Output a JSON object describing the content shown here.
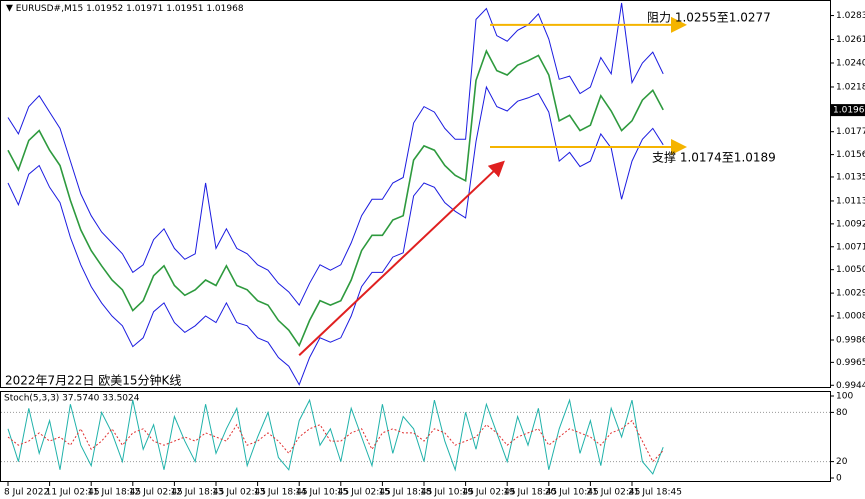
{
  "chart_data": [
    {
      "type": "line",
      "title": "EURUSD#,M15",
      "ohlc": [
        1.01952,
        1.01971,
        1.01951,
        1.01968
      ],
      "categories": [
        "8 Jul 2022",
        null,
        null,
        null,
        "11 Jul 02:45",
        null,
        null,
        null,
        "11 Jul 18:45",
        null,
        null,
        null,
        "12 Jul 02:45",
        null,
        null,
        null,
        "12 Jul 18:45",
        null,
        null,
        null,
        "13 Jul 02:45",
        null,
        null,
        null,
        "13 Jul 18:45",
        null,
        null,
        null,
        "14 Jul 10:45",
        null,
        null,
        null,
        "15 Jul 02:45",
        null,
        null,
        null,
        "15 Jul 18:45",
        null,
        null,
        null,
        "18 Jul 10:45",
        null,
        null,
        null,
        "19 Jul 02:45",
        null,
        null,
        null,
        "19 Jul 18:45",
        null,
        null,
        null,
        "20 Jul 10:45",
        null,
        null,
        null,
        "21 Jul 02:45",
        null,
        null,
        null,
        "21 Jul 18:45",
        null,
        null,
        null
      ],
      "series": [
        {
          "color": "#2e9a3e",
          "values": [
            1.016,
            1.0142,
            1.0169,
            1.0178,
            1.016,
            1.0146,
            1.0114,
            1.0087,
            1.0068,
            1.0054,
            1.0041,
            1.0032,
            1.0013,
            1.0022,
            1.0045,
            1.0054,
            1.0036,
            1.0027,
            1.0032,
            1.0041,
            1.0036,
            1.0054,
            1.0036,
            1.0032,
            1.0022,
            1.0018,
            1.0004,
            0.9995,
            0.9981,
            1.0004,
            1.0022,
            1.0018,
            1.0022,
            1.0041,
            1.0068,
            1.0082,
            1.0082,
            1.0096,
            1.01,
            1.0151,
            1.0164,
            1.016,
            1.0146,
            1.0137,
            1.0132,
            1.0224,
            1.0251,
            1.0233,
            1.0229,
            1.0238,
            1.0242,
            1.0247,
            1.0229,
            1.0187,
            1.0192,
            1.0178,
            1.0183,
            1.021,
            1.0196,
            1.0178,
            1.0187,
            1.0206,
            1.0215,
            1.0197
          ]
        },
        {
          "color": "#1c1ce0",
          "values": [
            1.019,
            1.0175,
            1.02,
            1.021,
            1.0195,
            1.018,
            1.015,
            1.012,
            1.01,
            1.0085,
            1.0075,
            1.0065,
            1.0048,
            1.0055,
            1.0078,
            1.0088,
            1.007,
            1.006,
            1.0065,
            1.013,
            1.007,
            1.0088,
            1.007,
            1.0065,
            1.0055,
            1.005,
            1.0038,
            1.003,
            1.0018,
            1.0038,
            1.0055,
            1.005,
            1.0055,
            1.0075,
            1.01,
            1.0115,
            1.0115,
            1.013,
            1.0135,
            1.0185,
            1.02,
            1.0195,
            1.018,
            1.017,
            1.017,
            1.028,
            1.029,
            1.0265,
            1.026,
            1.027,
            1.0275,
            1.0285,
            1.0262,
            1.0225,
            1.0228,
            1.0212,
            1.0218,
            1.0245,
            1.023,
            1.0295,
            1.0222,
            1.024,
            1.025,
            1.023
          ]
        },
        {
          "color": "#1c1ce0",
          "values": [
            1.013,
            1.011,
            1.0138,
            1.0146,
            1.0126,
            1.0112,
            1.008,
            1.0055,
            1.0035,
            1.002,
            1.0008,
            0.9999,
            0.998,
            0.9988,
            1.0012,
            1.002,
            1.0002,
            0.9993,
            0.9999,
            1.0008,
            1.0002,
            1.002,
            1.0002,
            0.9999,
            0.9988,
            0.9984,
            0.997,
            0.9962,
            0.9945,
            0.997,
            0.9988,
            0.9984,
            0.9988,
            1.0008,
            1.0035,
            1.0048,
            1.0048,
            1.0062,
            1.0066,
            1.0118,
            1.013,
            1.0126,
            1.0112,
            1.0104,
            1.0098,
            1.0168,
            1.0218,
            1.02,
            1.0196,
            1.0205,
            1.0208,
            1.0212,
            1.0195,
            1.015,
            1.0158,
            1.0145,
            1.015,
            1.0175,
            1.0162,
            1.0115,
            1.015,
            1.017,
            1.018,
            1.0165
          ]
        }
      ],
      "ylim": [
        0.9942,
        1.0295
      ],
      "yticks": [
        1.02835,
        1.02615,
        {
          "value": 1.024,
          "label": "1.02400"
        },
        1.0218,
        1.0177,
        1.0156,
        1.01355,
        1.01135,
        1.00925,
        1.00715,
        1.00505,
        {
          "value": 1.0029,
          "label": "1.00290"
        },
        {
          "value": 1.0008,
          "label": "1.00080"
        },
        {
          "value": 0.9986,
          "label": "0.99860"
        },
        0.99655,
        0.99445
      ],
      "levels": [
        {
          "value": 1.0275,
          "color": "#f5b400"
        },
        {
          "value": 1.0163,
          "color": "#f5b400"
        }
      ],
      "trend": {
        "x": [
          28,
          47.5
        ],
        "values": [
          0.9972,
          1.0148
        ],
        "color": "#e02020"
      },
      "annotations": [
        "阻力 1.0255至1.0277",
        "支撑 1.0174至1.0189",
        "2022年7月22日 欧美15分钟K线"
      ]
    },
    {
      "type": "line",
      "title": "Stoch(5,3,3) 37.5740 33.5024",
      "series": [
        {
          "color": "#20b2aa",
          "values": [
            60,
            20,
            85,
            30,
            70,
            10,
            90,
            40,
            15,
            80,
            55,
            20,
            95,
            35,
            65,
            10,
            75,
            45,
            20,
            90,
            30,
            60,
            85,
            15,
            50,
            80,
            25,
            10,
            70,
            95,
            40,
            60,
            20,
            85,
            50,
            15,
            90,
            30,
            75,
            60,
            20,
            95,
            45,
            10,
            80,
            35,
            90,
            55,
            20,
            75,
            40,
            85,
            10,
            60,
            95,
            30,
            70,
            15,
            85,
            50,
            95,
            20,
            5,
            37.574
          ]
        },
        {
          "color": "#e03030",
          "dashed": true,
          "values": [
            50,
            40,
            45,
            55,
            45,
            50,
            40,
            60,
            35,
            45,
            60,
            40,
            55,
            60,
            45,
            40,
            45,
            50,
            45,
            55,
            50,
            45,
            65,
            40,
            45,
            55,
            45,
            30,
            50,
            60,
            65,
            45,
            45,
            55,
            60,
            35,
            55,
            60,
            55,
            55,
            45,
            60,
            55,
            40,
            45,
            50,
            65,
            55,
            40,
            50,
            55,
            60,
            40,
            50,
            60,
            55,
            50,
            40,
            55,
            60,
            70,
            45,
            20,
            33.5024
          ]
        }
      ],
      "ylim": [
        0,
        100
      ],
      "yticks": [
        100,
        80,
        20,
        0
      ],
      "grid": true
    }
  ]
}
